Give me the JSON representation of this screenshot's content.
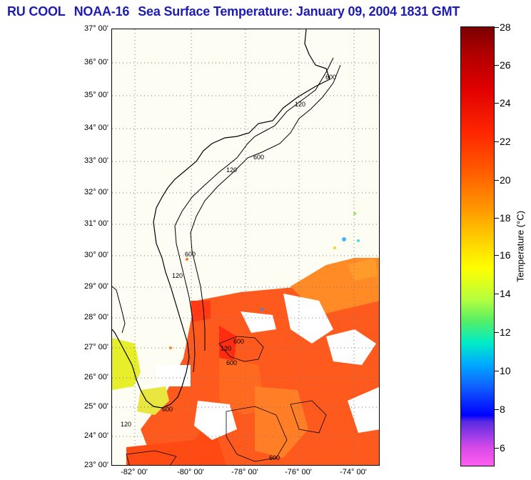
{
  "title": {
    "org": "RU COOL",
    "satellite": "NOAA-16",
    "product": "Sea Surface Temperature:",
    "datetime": "January 09, 2004 1831 GMT"
  },
  "map": {
    "lat_labels": [
      "37° 00'",
      "36° 00'",
      "35° 00'",
      "34° 00'",
      "33° 00'",
      "32° 00'",
      "31° 00'",
      "30° 00'",
      "29° 00'",
      "28° 00'",
      "27° 00'",
      "26° 00'",
      "25° 00'",
      "24° 00'",
      "23° 00'"
    ],
    "lon_labels": [
      "-82° 00'",
      "-80° 00'",
      "-78° 00'",
      "-76° 00'",
      "-74° 00'"
    ],
    "isobath_labels": [
      "600",
      "120",
      "600",
      "120",
      "600",
      "120",
      "600",
      "120",
      "600",
      "120",
      "600",
      "600"
    ]
  },
  "colorbar": {
    "label": "Temperature (°C)",
    "ticks": [
      "28",
      "26",
      "24",
      "22",
      "20",
      "18",
      "16",
      "14",
      "12",
      "10",
      "8",
      "6"
    ]
  },
  "colors": {
    "title": "#1c1cb0",
    "land": "#fdfdf4",
    "warm_water": "#ff5a1e"
  }
}
